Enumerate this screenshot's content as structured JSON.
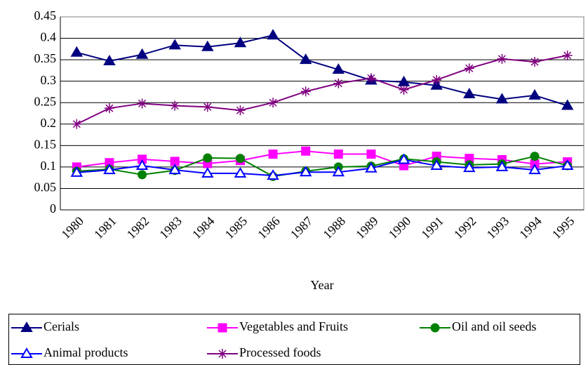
{
  "chart_data": {
    "type": "line",
    "x_label": "Year",
    "categories": [
      "1980",
      "1981",
      "1982",
      "1983",
      "1984",
      "1985",
      "1986",
      "1987",
      "1988",
      "1989",
      "1990",
      "1991",
      "1992",
      "1993",
      "1994",
      "1995"
    ],
    "series": [
      {
        "name": "Cerials",
        "color": "#000080",
        "marker": "triangle",
        "marker_fill": "#000080",
        "values": [
          0.367,
          0.347,
          0.362,
          0.384,
          0.38,
          0.389,
          0.407,
          0.35,
          0.327,
          0.302,
          0.298,
          0.29,
          0.27,
          0.258,
          0.267,
          0.243
        ]
      },
      {
        "name": "Vegetables and Fruits",
        "color": "#ff00ff",
        "marker": "square",
        "marker_fill": "#ff00ff",
        "values": [
          0.1,
          0.11,
          0.118,
          0.113,
          0.108,
          0.115,
          0.13,
          0.137,
          0.13,
          0.13,
          0.103,
          0.125,
          0.12,
          0.117,
          0.107,
          0.112
        ]
      },
      {
        "name": "Oil and oil seeds",
        "color": "#008000",
        "marker": "circle",
        "marker_fill": "#008000",
        "values": [
          0.09,
          0.095,
          0.082,
          0.092,
          0.121,
          0.12,
          0.078,
          0.09,
          0.1,
          0.102,
          0.119,
          0.112,
          0.105,
          0.107,
          0.125,
          0.103
        ]
      },
      {
        "name": "Animal products",
        "color": "#0000ff",
        "marker": "triangle",
        "marker_fill": "#ffffff",
        "values": [
          0.087,
          0.093,
          0.103,
          0.093,
          0.085,
          0.085,
          0.08,
          0.088,
          0.088,
          0.097,
          0.117,
          0.103,
          0.098,
          0.1,
          0.093,
          0.103
        ]
      },
      {
        "name": "Processed foods",
        "color": "#800080",
        "marker": "star",
        "marker_fill": "none",
        "values": [
          0.2,
          0.237,
          0.248,
          0.243,
          0.24,
          0.232,
          0.25,
          0.276,
          0.295,
          0.307,
          0.28,
          0.303,
          0.33,
          0.352,
          0.345,
          0.36
        ]
      }
    ],
    "ylim": [
      0,
      0.45
    ],
    "yticks": [
      0,
      0.05,
      0.1,
      0.15,
      0.2,
      0.25,
      0.3,
      0.35,
      0.4,
      0.45
    ],
    "grid": true,
    "legend": "bottom"
  }
}
